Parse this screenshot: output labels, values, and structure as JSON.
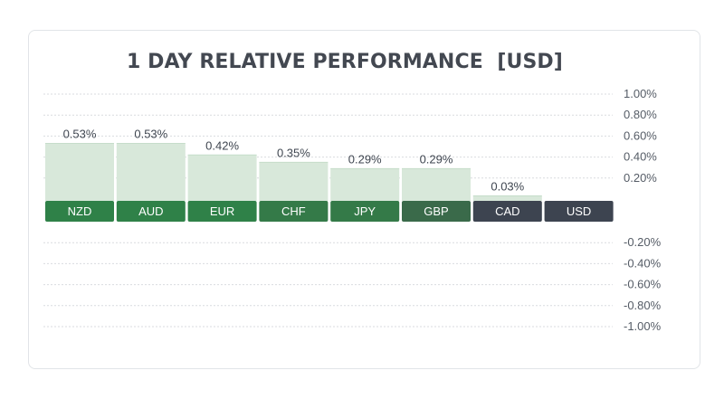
{
  "chart_data": {
    "type": "bar",
    "title": "1 DAY RELATIVE PERFORMANCE  [USD]",
    "categories": [
      "NZD",
      "AUD",
      "EUR",
      "CHF",
      "JPY",
      "GBP",
      "CAD",
      "USD"
    ],
    "values": [
      0.53,
      0.53,
      0.42,
      0.35,
      0.29,
      0.29,
      0.03,
      0
    ],
    "value_labels": [
      "0.53%",
      "0.53%",
      "0.42%",
      "0.35%",
      "0.29%",
      "0.29%",
      "0.03%",
      ""
    ],
    "ylim": [
      -1.0,
      1.0
    ],
    "positive_ticks": [
      {
        "value": 1.0,
        "label": "1.00%"
      },
      {
        "value": 0.8,
        "label": "0.80%"
      },
      {
        "value": 0.6,
        "label": "0.60%"
      },
      {
        "value": 0.4,
        "label": "0.40%"
      },
      {
        "value": 0.2,
        "label": "0.20%"
      }
    ],
    "negative_ticks": [
      {
        "value": -0.2,
        "label": "-0.20%"
      },
      {
        "value": -0.4,
        "label": "-0.40%"
      },
      {
        "value": -0.6,
        "label": "-0.60%"
      },
      {
        "value": -0.8,
        "label": "-0.80%"
      },
      {
        "value": -1.0,
        "label": "-1.00%"
      }
    ],
    "grid": true,
    "colors": {
      "bar_fill": "#d8e8da",
      "bar_edge": "#c6ddca",
      "label_strong": "#2f8148",
      "label_medium": "#347a48",
      "label_dark": "#3a6a4a",
      "label_neutral": "#3d4450",
      "grid": "#d9dbdf",
      "text": "#3f4650",
      "tick_text": "#555c66"
    }
  }
}
